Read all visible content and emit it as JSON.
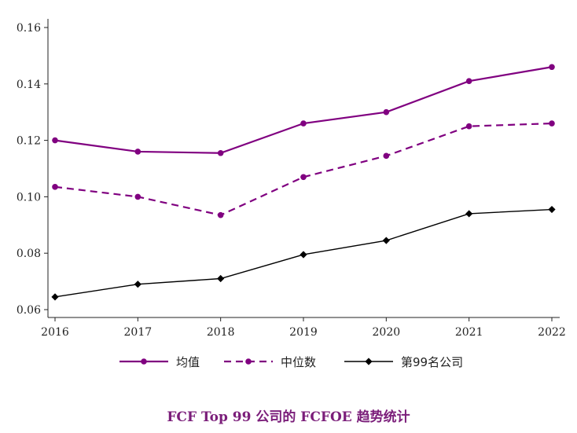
{
  "chart_data": {
    "type": "line",
    "title": "FCF Top 99 公司的 FCFOE 趋势统计",
    "x": [
      "2016",
      "2017",
      "2018",
      "2019",
      "2020",
      "2021",
      "2022"
    ],
    "ylim": [
      0.06,
      0.16
    ],
    "yticks": [
      "0.06",
      "0.08",
      "0.10",
      "0.12",
      "0.14",
      "0.16"
    ],
    "grid": false,
    "legend_position": "bottom",
    "series": [
      {
        "name": "均值",
        "values": [
          0.12,
          0.116,
          0.1155,
          0.126,
          0.13,
          0.141,
          0.146
        ],
        "color": "#800080",
        "style": "solid",
        "marker": "circle"
      },
      {
        "name": "中位数",
        "values": [
          0.1035,
          0.1,
          0.0935,
          0.107,
          0.1145,
          0.125,
          0.126
        ],
        "color": "#800080",
        "style": "dashed",
        "marker": "circle"
      },
      {
        "name": "第99名公司",
        "values": [
          0.0645,
          0.069,
          0.071,
          0.0795,
          0.0845,
          0.094,
          0.0955
        ],
        "color": "#000000",
        "style": "solid",
        "marker": "diamond"
      }
    ]
  }
}
